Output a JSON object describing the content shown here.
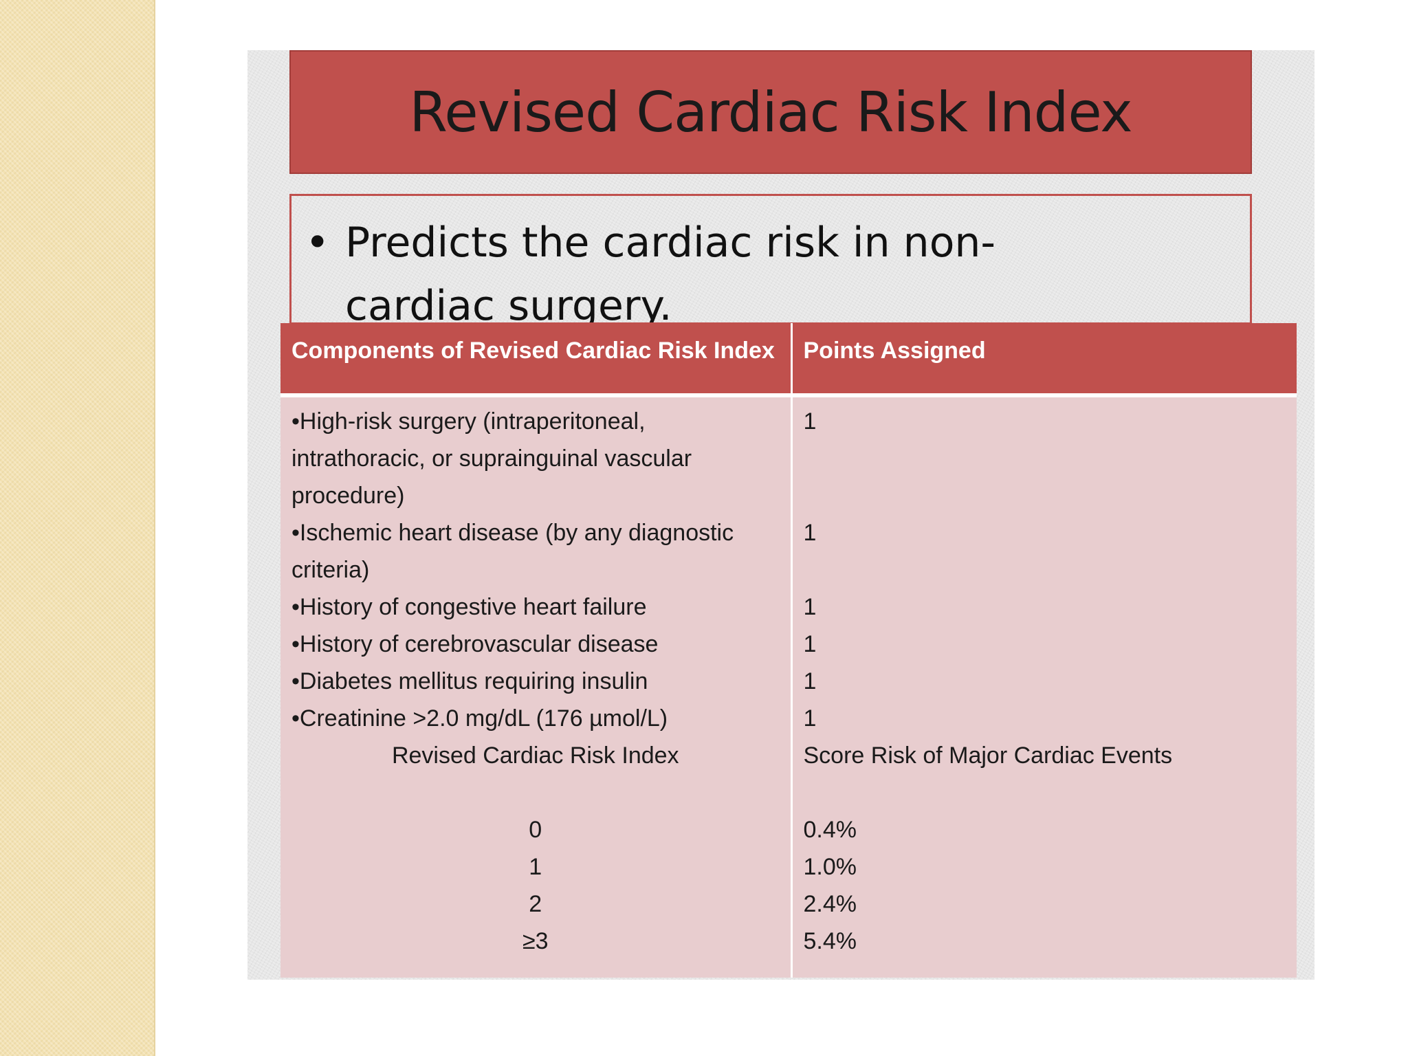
{
  "slide": {
    "title": "Revised Cardiac Risk Index",
    "bullet": {
      "marker": "•",
      "text": "Predicts the cardiac risk in non- cardiac surgery."
    }
  },
  "table": {
    "headers": [
      "Components of Revised Cardiac Risk Index",
      "Points Assigned"
    ],
    "components": [
      {
        "text": "•High-risk surgery (intraperitoneal, intrathoracic, or suprainguinal vascular procedure)",
        "points": "1"
      },
      {
        "text": "•Ischemic heart disease (by any diagnostic criteria)",
        "points": "1"
      },
      {
        "text": "•History of congestive heart failure",
        "points": "1"
      },
      {
        "text": "•History of cerebrovascular disease",
        "points": "1"
      },
      {
        "text": "•Diabetes mellitus requiring insulin",
        "points": "1"
      },
      {
        "text": "•Creatinine >2.0 mg/dL (176 µmol/L)",
        "points": "1"
      }
    ],
    "score_header": {
      "left": "Revised Cardiac Risk Index",
      "right": "Score Risk of Major Cardiac Events"
    },
    "scores": [
      {
        "index": "0",
        "risk": "0.4%"
      },
      {
        "index": "1",
        "risk": "1.0%"
      },
      {
        "index": "2",
        "risk": "2.4%"
      },
      {
        "index": "≥3",
        "risk": "5.4%"
      }
    ]
  }
}
